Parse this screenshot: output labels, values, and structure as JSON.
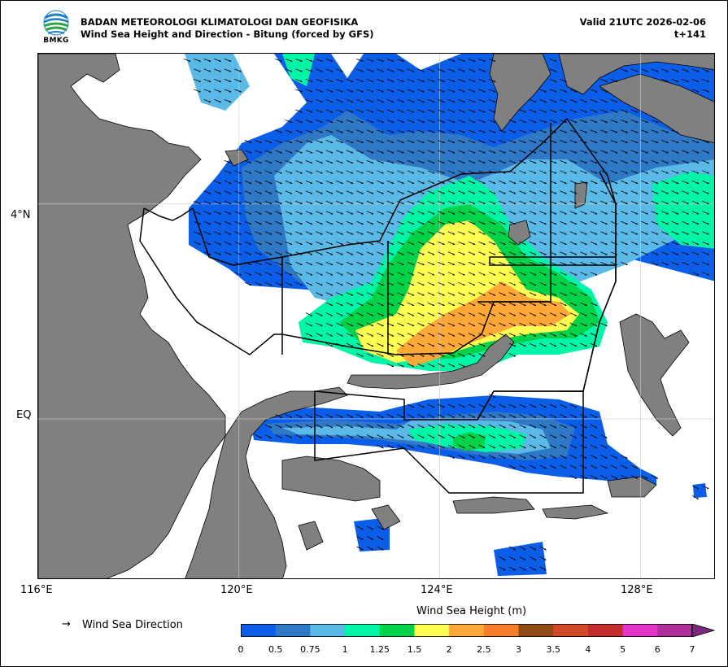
{
  "header": {
    "agency": "BADAN METEOROLOGI KLIMATOLOGI DAN GEOFISIKA",
    "product": "Wind Sea Height and Direction - Bitung (forced by GFS)",
    "valid": "Valid 21UTC 2026-02-06",
    "lead": "t+141",
    "logo_text": "BMKG"
  },
  "map": {
    "lon_range": [
      116,
      129.5
    ],
    "lat_range": [
      -3,
      6.8
    ],
    "x_ticks": [
      "116°E",
      "120°E",
      "124°E",
      "128°E"
    ],
    "y_ticks": [
      "4°N",
      "EQ"
    ],
    "land_color": "#808080",
    "grid": true
  },
  "legend": {
    "arrow_symbol": "→",
    "arrow_label": "Wind Sea Direction"
  },
  "colorbar": {
    "title": "Wind Sea Height (m)",
    "ticks": [
      "0",
      "0.5",
      "0.75",
      "1",
      "1.25",
      "1.5",
      "2",
      "2.5",
      "3",
      "3.5",
      "4",
      "5",
      "6",
      "7"
    ],
    "colors": [
      "#0a5ee8",
      "#2e78c6",
      "#5ab9e6",
      "#00f5a8",
      "#00d34a",
      "#ffff52",
      "#ffa838",
      "#f77e2a",
      "#8f4a16",
      "#d24a2a",
      "#c42b2b",
      "#e633c8",
      "#b02e9c"
    ],
    "extend_color": "#7a2a7a"
  }
}
